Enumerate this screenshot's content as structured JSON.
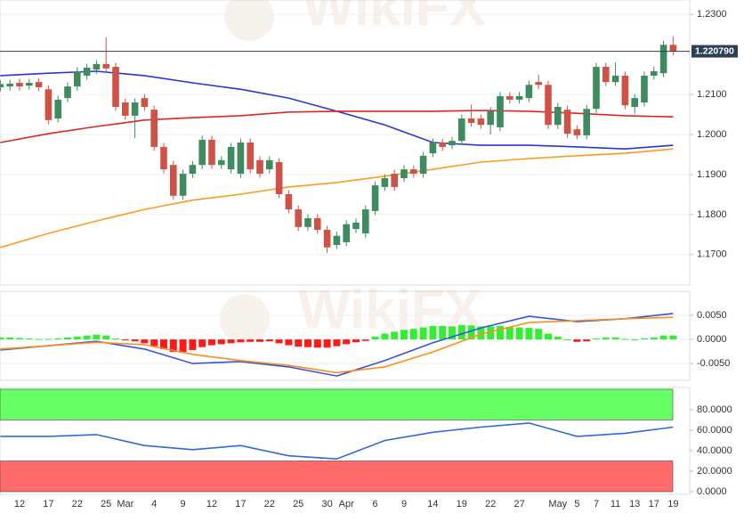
{
  "watermark": "WikiFX",
  "chart_data": [
    {
      "type": "candlestick",
      "categories": [
        null,
        null,
        "12",
        null,
        null,
        "17",
        null,
        null,
        "22",
        null,
        null,
        "25",
        null,
        "Mar",
        null,
        null,
        "4",
        null,
        null,
        "9",
        null,
        null,
        "12",
        null,
        null,
        "17",
        null,
        null,
        "22",
        null,
        null,
        "25",
        null,
        null,
        "30",
        null,
        "Apr",
        null,
        null,
        "6",
        null,
        null,
        "9",
        null,
        null,
        "14",
        null,
        null,
        "19",
        null,
        null,
        "22",
        null,
        null,
        "27",
        null,
        null,
        null,
        "May",
        null,
        "5",
        null,
        "7",
        null,
        "11",
        null,
        "13",
        null,
        "17",
        null,
        "19"
      ],
      "open": [
        1.2118,
        1.212,
        1.2129,
        1.2122,
        1.2131,
        1.2113,
        1.204,
        1.2091,
        1.212,
        1.2147,
        1.2162,
        1.2176,
        1.2169,
        1.208,
        1.2047,
        1.2091,
        1.2062,
        1.1969,
        1.1924,
        1.1847,
        1.1902,
        1.1924,
        1.1987,
        1.1924,
        1.1913,
        1.1902,
        1.198,
        1.1936,
        1.1913,
        1.1931,
        1.1851,
        1.1813,
        1.1769,
        1.1791,
        1.1762,
        1.1724,
        1.1731,
        1.1764,
        1.1753,
        1.1809,
        1.1869,
        1.1902,
        1.1891,
        1.1913,
        1.1902,
        1.1953,
        1.198,
        1.1973,
        1.1984,
        1.204,
        1.204,
        1.2024,
        1.2018,
        1.2096,
        1.2087,
        1.2091,
        1.2131,
        1.2124,
        1.2024,
        1.2062,
        1.2013,
        1.1998,
        1.2064,
        1.2169,
        1.2131,
        1.2147,
        1.2069,
        1.208,
        1.2147,
        1.2153,
        1.2224
      ],
      "high": [
        1.2136,
        1.2137,
        1.2139,
        1.2139,
        1.2141,
        1.2123,
        1.2097,
        1.213,
        1.2168,
        1.2177,
        1.2186,
        1.2243,
        1.2179,
        1.209,
        1.209,
        1.2101,
        1.2072,
        1.1979,
        1.1934,
        1.1912,
        1.1934,
        1.1997,
        1.1997,
        1.1946,
        1.1979,
        1.199,
        1.199,
        1.1946,
        1.1946,
        1.1941,
        1.1861,
        1.1823,
        1.1801,
        1.1801,
        1.1772,
        1.1757,
        1.1786,
        1.179,
        1.1823,
        1.1883,
        1.1901,
        1.1912,
        1.1923,
        1.1923,
        1.1957,
        1.199,
        1.199,
        1.1994,
        1.205,
        1.2075,
        1.205,
        1.2068,
        1.2106,
        1.2106,
        1.2106,
        1.2134,
        1.215,
        1.2134,
        1.2079,
        1.2072,
        1.2023,
        1.2074,
        1.2179,
        1.2179,
        1.218,
        1.2157,
        1.2101,
        1.2157,
        1.217,
        1.2234,
        1.2245
      ],
      "low": [
        1.2108,
        1.211,
        1.211,
        1.2112,
        1.2108,
        1.2026,
        1.203,
        1.2081,
        1.211,
        1.2137,
        1.2152,
        1.2155,
        1.2059,
        1.2037,
        1.1991,
        1.2059,
        1.1959,
        1.1903,
        1.1837,
        1.1837,
        1.1892,
        1.1914,
        1.1914,
        1.1914,
        1.1903,
        1.1892,
        1.1903,
        1.1892,
        1.1903,
        1.1841,
        1.1803,
        1.1759,
        1.1759,
        1.1752,
        1.1704,
        1.1714,
        1.1721,
        1.1754,
        1.1743,
        1.1799,
        1.1859,
        1.1859,
        1.1881,
        1.1892,
        1.1892,
        1.1943,
        1.1959,
        1.1963,
        1.1974,
        1.2019,
        1.2014,
        1.2,
        1.2008,
        1.2077,
        1.2077,
        1.2081,
        1.2114,
        1.2014,
        1.2014,
        1.1992,
        1.1988,
        1.1988,
        1.2054,
        1.2121,
        1.2121,
        1.2063,
        1.2052,
        1.207,
        1.2137,
        1.2143,
        1.2198
      ],
      "close": [
        1.2126,
        1.2127,
        1.212,
        1.2129,
        1.2118,
        1.2036,
        1.2087,
        1.212,
        1.2158,
        1.2167,
        1.2176,
        1.2165,
        1.2069,
        1.2047,
        1.208,
        1.2069,
        1.1969,
        1.1913,
        1.1847,
        1.1902,
        1.1924,
        1.1987,
        1.1924,
        1.1936,
        1.1969,
        1.198,
        1.1913,
        1.1902,
        1.1936,
        1.1851,
        1.1813,
        1.1769,
        1.1791,
        1.1762,
        1.1718,
        1.1747,
        1.1776,
        1.178,
        1.1813,
        1.1873,
        1.1891,
        1.1869,
        1.1913,
        1.1902,
        1.1947,
        1.198,
        1.1969,
        1.1984,
        1.204,
        1.2029,
        1.2024,
        1.2058,
        1.2096,
        1.2087,
        1.2096,
        1.2124,
        1.2124,
        1.2024,
        1.2069,
        1.2002,
        1.1998,
        1.2064,
        1.2169,
        1.2131,
        1.2147,
        1.2073,
        1.2091,
        1.2147,
        1.2158,
        1.2224,
        1.2208
      ],
      "up_color": "#3d8b5e",
      "down_color": "#cf5247",
      "series": [
        {
          "color": "#2a36d0",
          "x": [
            0,
            5,
            10,
            15,
            20,
            25,
            30,
            35,
            40,
            45,
            50,
            55,
            60,
            65,
            70
          ],
          "values": [
            1.2147,
            1.2153,
            1.2158,
            1.2147,
            1.2129,
            1.2113,
            1.2091,
            1.2058,
            1.2024,
            1.198,
            1.1973,
            1.1973,
            1.1969,
            1.1964,
            1.1973
          ]
        },
        {
          "color": "#e02424",
          "x": [
            0,
            5,
            10,
            15,
            20,
            25,
            30,
            35,
            40,
            45,
            50,
            55,
            60,
            65,
            70
          ],
          "values": [
            1.198,
            1.2002,
            1.202,
            1.2036,
            1.2042,
            1.2047,
            1.2056,
            1.2058,
            1.2058,
            1.2058,
            1.206,
            1.2058,
            1.2053,
            1.2047,
            1.2044
          ]
        },
        {
          "color": "#ff9a1f",
          "x": [
            0,
            5,
            10,
            15,
            20,
            25,
            30,
            35,
            40,
            45,
            50,
            55,
            60,
            65,
            70
          ],
          "values": [
            1.1718,
            1.1753,
            1.1784,
            1.1813,
            1.1836,
            1.1851,
            1.1869,
            1.188,
            1.1896,
            1.1913,
            1.1931,
            1.194,
            1.1947,
            1.1953,
            1.1964
          ]
        }
      ],
      "last_price": {
        "value": 1.22079,
        "label": "1.220790"
      },
      "ylim": [
        1.1624,
        1.2336
      ],
      "yticks": [
        {
          "value": 1.17,
          "label": "1.1700"
        },
        {
          "value": 1.18,
          "label": "1.1800"
        },
        {
          "value": 1.19,
          "label": "1.1900"
        },
        {
          "value": 1.2,
          "label": "1.2000"
        },
        {
          "value": 1.21,
          "label": "1.2100"
        },
        {
          "value": 1.23,
          "label": "1.2300"
        }
      ],
      "grid": true
    },
    {
      "type": "macd",
      "histogram": [
        0.0004,
        0.0004,
        0.0003,
        0.0002,
        0.0001,
        0.0001,
        0.0002,
        0.0004,
        0.0006,
        0.0008,
        0.001,
        0.0008,
        0.0002,
        -0.0002,
        -0.0004,
        -0.0008,
        -0.0014,
        -0.002,
        -0.0026,
        -0.0026,
        -0.0022,
        -0.0016,
        -0.0012,
        -0.001,
        -0.0008,
        -0.0006,
        -0.0005,
        -0.0005,
        -0.0004,
        -0.0008,
        -0.0012,
        -0.0015,
        -0.0016,
        -0.0017,
        -0.0017,
        -0.0014,
        -0.001,
        -0.0006,
        -0.0003,
        0.0006,
        0.0012,
        0.0016,
        0.002,
        0.0022,
        0.0025,
        0.0028,
        0.0028,
        0.0027,
        0.003,
        0.0029,
        0.0027,
        0.0027,
        0.0028,
        0.0026,
        0.0025,
        0.0024,
        0.0022,
        0.0012,
        0.0006,
        0.0,
        -0.0005,
        -0.0004,
        0.0002,
        0.0004,
        0.0004,
        0.0001,
        0.0,
        0.0002,
        0.0004,
        0.0008,
        0.0008
      ],
      "up_color": "#33ee33",
      "down_color": "#ff1a1a",
      "series": [
        {
          "color": "#3355dd",
          "x": [
            0,
            5,
            10,
            15,
            20,
            25,
            30,
            35,
            40,
            45,
            50,
            55,
            60,
            65,
            70
          ],
          "values": [
            -0.0022,
            -0.0013,
            -0.0004,
            -0.002,
            -0.005,
            -0.0046,
            -0.0057,
            -0.0076,
            -0.0044,
            -0.0007,
            0.0024,
            0.0048,
            0.0037,
            0.0043,
            0.0054
          ]
        },
        {
          "color": "#ff8c1a",
          "x": [
            0,
            5,
            10,
            15,
            20,
            25,
            30,
            35,
            40,
            45,
            50,
            55,
            60,
            65,
            70
          ],
          "values": [
            -0.002,
            -0.0013,
            -0.0006,
            -0.0011,
            -0.0031,
            -0.0044,
            -0.0054,
            -0.0069,
            -0.0057,
            -0.0026,
            0.0011,
            0.0035,
            0.0039,
            0.0043,
            0.0046
          ]
        }
      ],
      "ylim": [
        -0.0085,
        0.01
      ],
      "yticks": [
        {
          "value": -0.005,
          "label": "-0.0050"
        },
        {
          "value": 0,
          "label": "0.0000"
        },
        {
          "value": 0.005,
          "label": "0.0050"
        }
      ],
      "grid": true
    },
    {
      "type": "rsi",
      "bands": [
        {
          "from": 70,
          "to": 100,
          "color": "#66ff66"
        },
        {
          "from": 0,
          "to": 30,
          "color": "#ff6b6b"
        }
      ],
      "series": [
        {
          "color": "#3366dd",
          "x": [
            0,
            5,
            10,
            15,
            20,
            25,
            30,
            35,
            40,
            45,
            50,
            55,
            60,
            65,
            70
          ],
          "values": [
            54,
            54,
            55.7,
            45,
            41,
            45,
            35,
            32,
            50,
            58,
            63,
            67,
            54,
            57,
            63
          ]
        }
      ],
      "ylim": [
        -2.6,
        101.7
      ],
      "yticks": [
        {
          "value": 0,
          "label": "0.0000"
        },
        {
          "value": 20,
          "label": "20.0000"
        },
        {
          "value": 40,
          "label": "40.0000"
        },
        {
          "value": 60,
          "label": "60.0000"
        },
        {
          "value": 80,
          "label": "80.0000"
        }
      ],
      "grid": false
    }
  ]
}
